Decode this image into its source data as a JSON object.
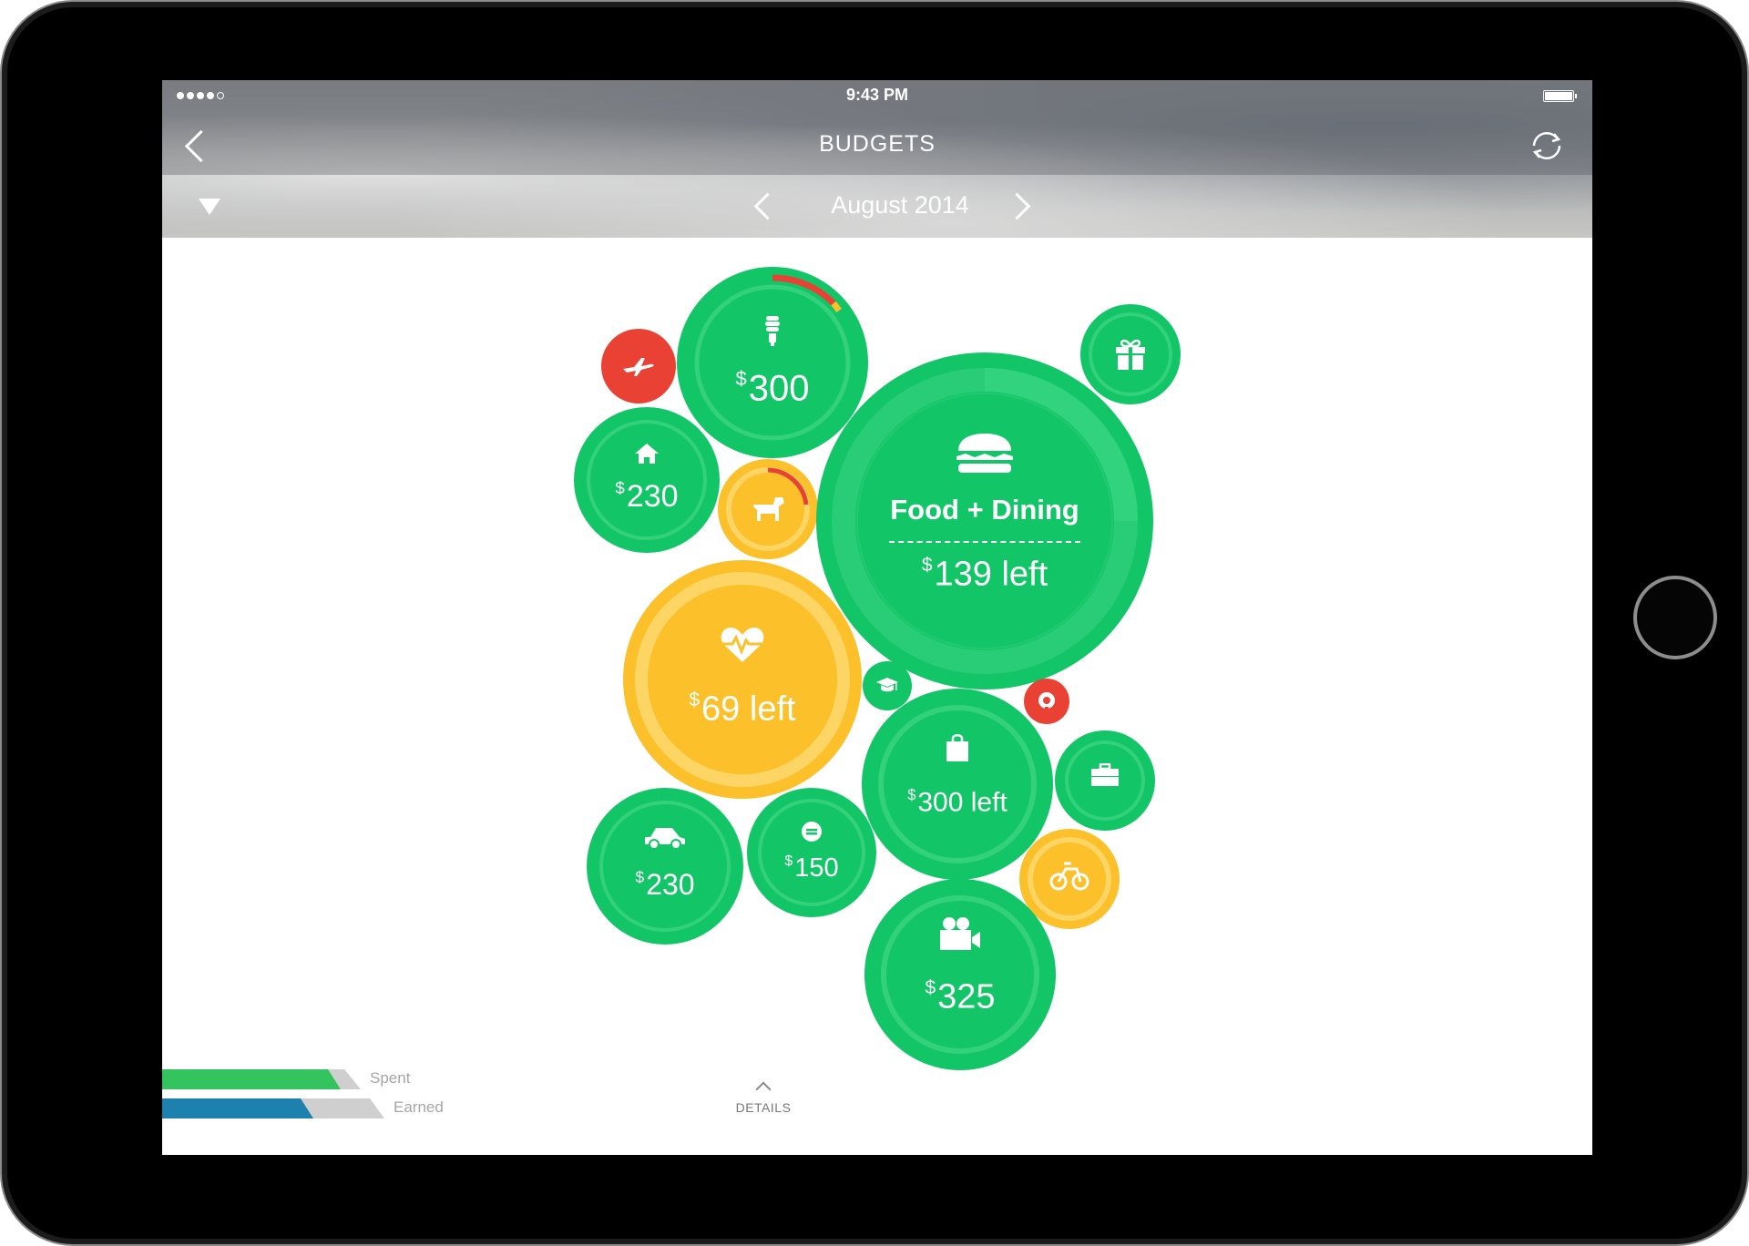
{
  "status_bar": {
    "time": "9:43 PM"
  },
  "nav": {
    "title": "BUDGETS"
  },
  "month_bar": {
    "label": "August 2014"
  },
  "bubbles": {
    "utilities": {
      "currency": "$",
      "amount": "300"
    },
    "housing": {
      "currency": "$",
      "amount": "230"
    },
    "food": {
      "title": "Food + Dining",
      "currency": "$",
      "amount": "139 left"
    },
    "health": {
      "currency": "$",
      "amount": "69 left"
    },
    "shopping": {
      "currency": "$",
      "amount": "300 left"
    },
    "auto": {
      "currency": "$",
      "amount": "230"
    },
    "fees": {
      "currency": "$",
      "amount": "150"
    },
    "entertainment": {
      "currency": "$",
      "amount": "325"
    }
  },
  "legend": {
    "spent_label": "Spent",
    "earned_label": "Earned"
  },
  "details": {
    "label": "DETAILS"
  },
  "colors": {
    "green": "#12c566",
    "yellow": "#fbc02a",
    "red": "#e94234",
    "blue": "#1e80ad"
  }
}
